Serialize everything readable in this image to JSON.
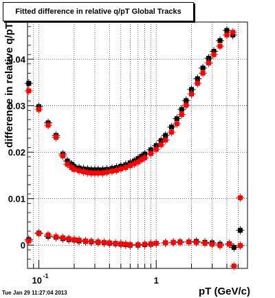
{
  "chart_data": {
    "type": "scatter",
    "title": "Fitted difference in relative q/pT  Global Tracks",
    "xlabel": "pT (GeV/c)",
    "ylabel": "difference in relative q/pT",
    "x_scale": "log",
    "xlim": [
      0.08,
      6.0
    ],
    "ylim": [
      -0.005,
      0.048
    ],
    "xticks": [
      {
        "value": 0.1,
        "label": "10^{-1}"
      },
      {
        "value": 1,
        "label": "1"
      }
    ],
    "yticks": [
      0,
      0.01,
      0.02,
      0.03,
      0.04
    ],
    "ytick_labels": [
      "0",
      "0.01",
      "0.02",
      "0.03",
      "0.04"
    ],
    "grid": true,
    "series_colors": [
      "#000000",
      "#ff0000"
    ],
    "series": [
      {
        "color": "#000000",
        "points": [
          [
            0.082,
            0.0348
          ],
          [
            0.1,
            0.0298
          ],
          [
            0.12,
            0.0263
          ],
          [
            0.14,
            0.0236
          ],
          [
            0.16,
            0.0196
          ],
          [
            0.175,
            0.0181
          ],
          [
            0.19,
            0.0174
          ],
          [
            0.2,
            0.0169
          ],
          [
            0.22,
            0.0166
          ],
          [
            0.24,
            0.0164
          ],
          [
            0.26,
            0.0163
          ],
          [
            0.28,
            0.0162
          ],
          [
            0.3,
            0.0162
          ],
          [
            0.32,
            0.0162
          ],
          [
            0.35,
            0.0162
          ],
          [
            0.38,
            0.0163
          ],
          [
            0.42,
            0.0165
          ],
          [
            0.46,
            0.0167
          ],
          [
            0.5,
            0.017
          ],
          [
            0.55,
            0.0173
          ],
          [
            0.6,
            0.0177
          ],
          [
            0.65,
            0.0181
          ],
          [
            0.7,
            0.0186
          ],
          [
            0.75,
            0.0191
          ],
          [
            0.8,
            0.0196
          ],
          [
            0.9,
            0.0205
          ],
          [
            1.0,
            0.0214
          ],
          [
            1.1,
            0.0225
          ],
          [
            1.2,
            0.0236
          ],
          [
            1.35,
            0.0254
          ],
          [
            1.5,
            0.0272
          ],
          [
            1.65,
            0.0292
          ],
          [
            1.8,
            0.0311
          ],
          [
            2.0,
            0.0335
          ],
          [
            2.25,
            0.0358
          ],
          [
            2.5,
            0.0381
          ],
          [
            2.8,
            0.0402
          ],
          [
            3.1,
            0.0417
          ],
          [
            3.5,
            0.044
          ],
          [
            4.0,
            0.0462
          ],
          [
            4.5,
            0.0452
          ],
          [
            5.2,
            0.0032
          ]
        ]
      },
      {
        "color": "#ff0000",
        "points": [
          [
            0.082,
            0.0332
          ],
          [
            0.1,
            0.0292
          ],
          [
            0.12,
            0.0258
          ],
          [
            0.14,
            0.0232
          ],
          [
            0.16,
            0.0192
          ],
          [
            0.175,
            0.0174
          ],
          [
            0.19,
            0.0167
          ],
          [
            0.2,
            0.0163
          ],
          [
            0.22,
            0.016
          ],
          [
            0.24,
            0.0158
          ],
          [
            0.26,
            0.0156
          ],
          [
            0.28,
            0.0155
          ],
          [
            0.3,
            0.0155
          ],
          [
            0.32,
            0.0155
          ],
          [
            0.35,
            0.0155
          ],
          [
            0.38,
            0.0157
          ],
          [
            0.42,
            0.0159
          ],
          [
            0.46,
            0.0161
          ],
          [
            0.5,
            0.0164
          ],
          [
            0.55,
            0.0167
          ],
          [
            0.6,
            0.0171
          ],
          [
            0.65,
            0.0175
          ],
          [
            0.7,
            0.0179
          ],
          [
            0.75,
            0.0184
          ],
          [
            0.8,
            0.0188
          ],
          [
            0.9,
            0.0197
          ],
          [
            1.0,
            0.0206
          ],
          [
            1.1,
            0.0216
          ],
          [
            1.2,
            0.0226
          ],
          [
            1.35,
            0.0243
          ],
          [
            1.5,
            0.0261
          ],
          [
            1.65,
            0.0281
          ],
          [
            1.8,
            0.0301
          ],
          [
            2.0,
            0.0325
          ],
          [
            2.25,
            0.0348
          ],
          [
            2.5,
            0.037
          ],
          [
            2.8,
            0.0392
          ],
          [
            3.1,
            0.041
          ],
          [
            3.5,
            0.0428
          ],
          [
            4.0,
            0.0452
          ],
          [
            4.5,
            0.0458
          ],
          [
            5.2,
            0.0102
          ]
        ]
      },
      {
        "color": "#000000",
        "points": [
          [
            0.082,
            0.0012
          ],
          [
            0.1,
            0.0026
          ],
          [
            0.12,
            0.0019
          ],
          [
            0.14,
            0.0017
          ],
          [
            0.16,
            0.0014
          ],
          [
            0.18,
            0.0012
          ],
          [
            0.2,
            0.0011
          ],
          [
            0.22,
            0.0009
          ],
          [
            0.25,
            0.0008
          ],
          [
            0.28,
            0.0007
          ],
          [
            0.32,
            0.0006
          ],
          [
            0.36,
            0.0005
          ],
          [
            0.4,
            0.0004
          ],
          [
            0.45,
            0.0003
          ],
          [
            0.5,
            0.0002
          ],
          [
            0.55,
            0.0001
          ],
          [
            0.6,
            0.0
          ],
          [
            0.7,
            0.0
          ],
          [
            0.8,
            0.0001
          ],
          [
            0.9,
            0.0002
          ],
          [
            1.0,
            0.0004
          ],
          [
            1.2,
            0.0005
          ],
          [
            1.4,
            0.0006
          ],
          [
            1.6,
            0.0007
          ],
          [
            1.9,
            0.0007
          ],
          [
            2.2,
            0.0008
          ],
          [
            2.6,
            0.0006
          ],
          [
            3.0,
            0.0005
          ],
          [
            3.5,
            0.0002
          ],
          [
            4.2,
            0.0003
          ],
          [
            4.6,
            -0.0005
          ],
          [
            5.2,
            -0.0001
          ]
        ]
      },
      {
        "color": "#ff0000",
        "points": [
          [
            0.082,
            0.0009
          ],
          [
            0.1,
            0.0025
          ],
          [
            0.12,
            0.0022
          ],
          [
            0.14,
            0.0018
          ],
          [
            0.16,
            0.0016
          ],
          [
            0.18,
            0.0014
          ],
          [
            0.2,
            0.0012
          ],
          [
            0.22,
            0.0011
          ],
          [
            0.25,
            0.0009
          ],
          [
            0.28,
            0.0008
          ],
          [
            0.32,
            0.0007
          ],
          [
            0.36,
            0.0006
          ],
          [
            0.4,
            0.0005
          ],
          [
            0.45,
            0.0004
          ],
          [
            0.5,
            0.0003
          ],
          [
            0.55,
            0.0002
          ],
          [
            0.6,
            0.0001
          ],
          [
            0.7,
            0.0001
          ],
          [
            0.8,
            0.0002
          ],
          [
            0.9,
            0.0003
          ],
          [
            1.0,
            0.0004
          ],
          [
            1.2,
            0.0005
          ],
          [
            1.4,
            0.0006
          ],
          [
            1.6,
            0.0006
          ],
          [
            1.9,
            0.0007
          ],
          [
            2.2,
            0.0006
          ],
          [
            2.6,
            0.0004
          ],
          [
            3.0,
            0.0002
          ],
          [
            3.5,
            -0.0001
          ],
          [
            4.2,
            0.0002
          ],
          [
            4.6,
            -0.0045
          ],
          [
            5.2,
            -0.0001
          ]
        ]
      }
    ]
  },
  "footer_text": "Tue Jan 29 11:27:04 2013"
}
